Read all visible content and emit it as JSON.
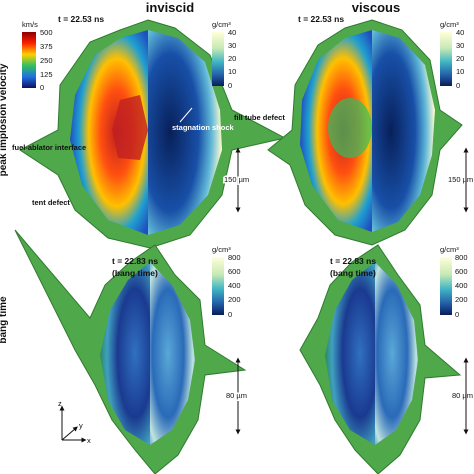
{
  "columns": [
    "inviscid",
    "viscous"
  ],
  "rows": [
    "peak implosion velocity",
    "bang time"
  ],
  "panels": [
    {
      "time": "t = 22.53 ns",
      "colorbars": [
        {
          "unit": "km/s",
          "ticks": [
            500,
            375,
            250,
            125,
            0
          ]
        },
        {
          "unit": "g/cm³",
          "ticks": [
            40,
            30,
            20,
            10,
            0
          ]
        }
      ],
      "annotations": [
        "stagnation shock",
        "fill tube defect",
        "fuel-ablator interface",
        "tent defect"
      ],
      "scale": "150 µm"
    },
    {
      "time": "t = 22.53 ns",
      "colorbars": [
        {
          "unit": "g/cm³",
          "ticks": [
            40,
            30,
            20,
            10,
            0
          ]
        }
      ],
      "scale": "150 µm"
    },
    {
      "time": "t = 22.83 ns",
      "note": "(bang time)",
      "colorbars": [
        {
          "unit": "g/cm³",
          "ticks": [
            800,
            600,
            400,
            200,
            0
          ]
        }
      ],
      "scale": "80 µm"
    },
    {
      "time": "t = 22.83 ns",
      "note": "(bang time)",
      "colorbars": [
        {
          "unit": "g/cm³",
          "ticks": [
            800,
            600,
            400,
            200,
            0
          ]
        }
      ],
      "scale": "80 µm"
    }
  ],
  "axes": [
    "z",
    "y",
    "x"
  ]
}
